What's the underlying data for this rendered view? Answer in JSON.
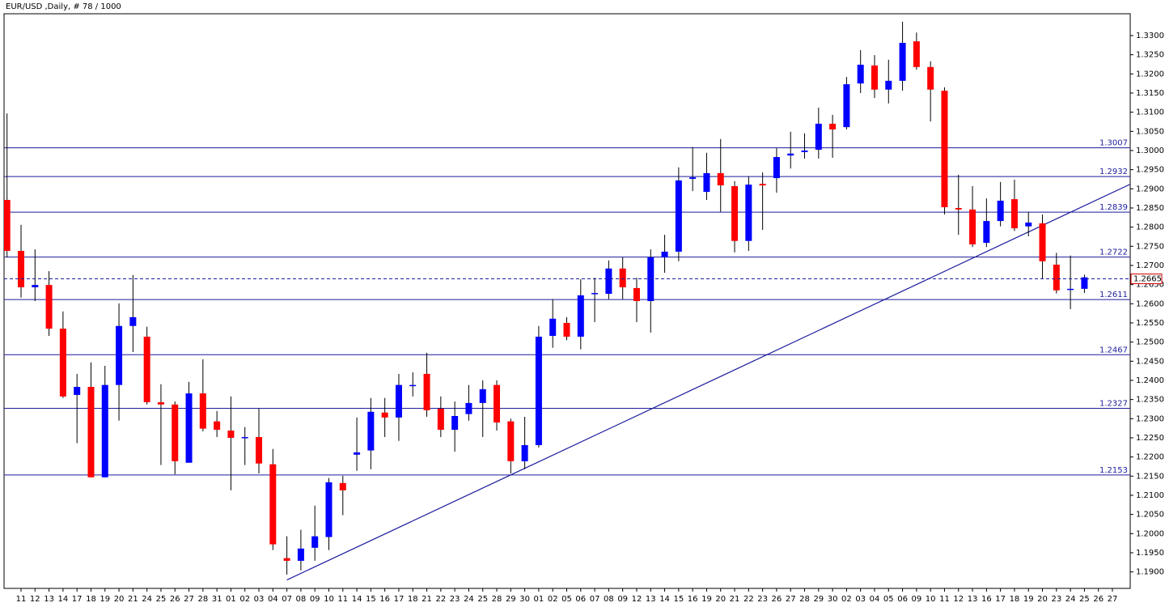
{
  "chart_data": {
    "type": "candlestick",
    "title": "EUR/USD ,Daily, # 78 / 1000",
    "categories": [
      null,
      "11",
      "12",
      "13",
      "14",
      "17",
      "18",
      "19",
      "20",
      "21",
      "24",
      "25",
      "26",
      "27",
      "28",
      "31",
      "01",
      "02",
      "03",
      "04",
      "07",
      "08",
      "09",
      "10",
      "11",
      "14",
      "15",
      "16",
      "17",
      "18",
      "21",
      "22",
      "23",
      "24",
      "25",
      "28",
      "29",
      "30",
      "01",
      "02",
      "05",
      "06",
      "07",
      "08",
      "09",
      "12",
      "13",
      "14",
      "15",
      "16",
      "19",
      "20",
      "21",
      "22",
      "23",
      "26",
      "27",
      "28",
      "29",
      "30",
      "02",
      "03",
      "04",
      "05",
      "06",
      "09",
      "10",
      "11",
      "12",
      "13",
      "16",
      "17",
      "18",
      "19",
      "20",
      "23",
      "24",
      "25",
      "26",
      "27"
    ],
    "open": [
      1.2871,
      1.2738,
      1.2643,
      1.2649,
      1.2535,
      1.2362,
      1.2383,
      1.2147,
      1.2388,
      1.2542,
      1.2514,
      1.2343,
      1.2337,
      1.2185,
      1.2366,
      1.2293,
      1.2269,
      1.225,
      1.2252,
      1.2181,
      1.1936,
      1.1929,
      1.1963,
      1.1991,
      1.2132,
      1.2206,
      1.2217,
      1.2316,
      1.2303,
      1.2386,
      1.2417,
      1.2326,
      1.2271,
      1.2312,
      1.2341,
      1.2388,
      1.2293,
      1.2189,
      1.2231,
      1.2516,
      1.255,
      1.2514,
      1.2626,
      1.2626,
      1.2692,
      1.2641,
      1.2607,
      1.2721,
      1.2736,
      1.2926,
      1.2892,
      1.2941,
      1.2907,
      1.2764,
      1.2913,
      1.2928,
      1.2987,
      1.2996,
      1.3002,
      1.307,
      1.3061,
      1.3175,
      1.3222,
      1.3159,
      1.3182,
      1.3285,
      1.3218,
      1.3156,
      1.285,
      1.2846,
      1.2759,
      1.2816,
      1.2873,
      1.2802,
      1.281,
      1.2702,
      1.2637,
      1.2639,
      null,
      null
    ],
    "high": [
      1.3097,
      1.2806,
      1.2742,
      1.2685,
      1.258,
      1.2417,
      1.2447,
      1.2438,
      1.2601,
      1.2675,
      1.254,
      1.239,
      1.2345,
      1.2396,
      1.2455,
      1.232,
      1.2358,
      1.2278,
      1.2326,
      1.2221,
      1.1993,
      1.201,
      1.2073,
      1.2145,
      1.2151,
      1.2303,
      1.2354,
      1.2354,
      1.2417,
      1.2421,
      1.2472,
      1.2358,
      1.2345,
      1.2388,
      1.24,
      1.24,
      1.23,
      1.2305,
      1.2542,
      1.2612,
      1.2565,
      1.2664,
      1.2668,
      1.2713,
      1.2721,
      1.2668,
      1.2742,
      1.278,
      1.2956,
      1.3009,
      1.2994,
      1.303,
      1.292,
      1.2932,
      1.2943,
      1.3006,
      1.3049,
      1.3045,
      1.3112,
      1.3093,
      1.3192,
      1.3262,
      1.3249,
      1.3237,
      1.3336,
      1.3308,
      1.3233,
      1.3165,
      1.2937,
      1.2907,
      1.2875,
      1.2918,
      1.2924,
      1.284,
      1.2833,
      1.2733,
      1.2726,
      1.2676,
      null,
      null
    ],
    "low": [
      1.2721,
      1.2616,
      1.2607,
      1.2516,
      1.2354,
      1.2236,
      1.2147,
      1.2147,
      1.2295,
      1.2474,
      1.2337,
      1.2179,
      1.2155,
      1.2185,
      1.2267,
      1.2252,
      1.2113,
      1.2179,
      1.2157,
      1.1957,
      1.1893,
      1.1904,
      1.1929,
      1.1957,
      1.2048,
      1.2164,
      1.2168,
      1.2252,
      1.2242,
      1.2358,
      1.2305,
      1.2252,
      1.2214,
      1.2295,
      1.2252,
      1.2269,
      1.2157,
      1.2168,
      1.2225,
      1.2485,
      1.2505,
      1.2481,
      1.2552,
      1.2612,
      1.2612,
      1.2552,
      1.2525,
      1.2681,
      1.2711,
      1.2894,
      1.2871,
      1.284,
      1.2734,
      1.2738,
      1.2793,
      1.289,
      1.2953,
      1.2979,
      1.2979,
      1.2981,
      1.3055,
      1.315,
      1.3137,
      1.3123,
      1.3156,
      1.3211,
      1.3076,
      1.2833,
      1.278,
      1.2748,
      1.2748,
      1.2802,
      1.279,
      1.2776,
      1.2664,
      1.2627,
      1.2586,
      1.2628,
      null,
      null
    ],
    "close": [
      1.2738,
      1.2643,
      1.2649,
      1.2535,
      1.2358,
      1.2383,
      1.2147,
      1.2388,
      1.2542,
      1.2565,
      1.2343,
      1.2337,
      1.2189,
      1.2366,
      1.2274,
      1.2271,
      1.225,
      1.2252,
      1.2183,
      1.1972,
      1.1929,
      1.1961,
      1.1993,
      1.2134,
      1.2113,
      1.2212,
      1.2318,
      1.2303,
      1.2388,
      1.2388,
      1.2322,
      1.2271,
      1.2307,
      1.2341,
      1.2377,
      1.229,
      1.2189,
      1.2231,
      1.2514,
      1.2561,
      1.2514,
      1.2622,
      1.2628,
      1.2692,
      1.2643,
      1.2607,
      1.2721,
      1.2736,
      1.2922,
      1.293,
      1.2941,
      1.2909,
      1.2764,
      1.2911,
      1.2909,
      1.2983,
      1.2992,
      1.3,
      1.307,
      1.3055,
      1.3173,
      1.3224,
      1.3159,
      1.3182,
      1.3281,
      1.3218,
      1.3159,
      1.2852,
      1.2846,
      1.2755,
      1.2816,
      1.2869,
      1.2797,
      1.2812,
      1.2711,
      1.2635,
      1.2639,
      1.2669,
      null,
      null
    ],
    "up_color": "#0000ff",
    "down_color": "#ff0000",
    "wick_color": "#000000",
    "ylim": [
      1.1857,
      1.3357
    ],
    "yticks": [
      {
        "value": 1.19,
        "label": "1.1900"
      },
      {
        "value": 1.195,
        "label": "1.1950"
      },
      {
        "value": 1.2,
        "label": "1.2000"
      },
      {
        "value": 1.205,
        "label": "1.2050"
      },
      {
        "value": 1.21,
        "label": "1.2100"
      },
      {
        "value": 1.215,
        "label": "1.2150"
      },
      {
        "value": 1.22,
        "label": "1.2200"
      },
      {
        "value": 1.225,
        "label": "1.2250"
      },
      {
        "value": 1.23,
        "label": "1.2300"
      },
      {
        "value": 1.235,
        "label": "1.2350"
      },
      {
        "value": 1.24,
        "label": "1.2400"
      },
      {
        "value": 1.245,
        "label": "1.2450"
      },
      {
        "value": 1.25,
        "label": "1.2500"
      },
      {
        "value": 1.255,
        "label": "1.2550"
      },
      {
        "value": 1.26,
        "label": "1.2600"
      },
      {
        "value": 1.265,
        "label": "1.2650"
      },
      {
        "value": 1.27,
        "label": "1.2700"
      },
      {
        "value": 1.275,
        "label": "1.2750"
      },
      {
        "value": 1.28,
        "label": "1.2800"
      },
      {
        "value": 1.285,
        "label": "1.2850"
      },
      {
        "value": 1.29,
        "label": "1.2900"
      },
      {
        "value": 1.295,
        "label": "1.2950"
      },
      {
        "value": 1.3,
        "label": "1.3000"
      },
      {
        "value": 1.305,
        "label": "1.3050"
      },
      {
        "value": 1.31,
        "label": "1.3100"
      },
      {
        "value": 1.315,
        "label": "1.3150"
      },
      {
        "value": 1.32,
        "label": "1.3200"
      },
      {
        "value": 1.325,
        "label": "1.3250"
      },
      {
        "value": 1.33,
        "label": "1.3300"
      }
    ],
    "levels": [
      {
        "value": 1.3007,
        "label": "1.3007"
      },
      {
        "value": 1.2932,
        "label": "1.2932"
      },
      {
        "value": 1.2839,
        "label": "1.2839"
      },
      {
        "value": 1.2722,
        "label": "1.2722"
      },
      {
        "value": 1.2611,
        "label": "1.2611"
      },
      {
        "value": 1.2467,
        "label": "1.2467"
      },
      {
        "value": 1.2327,
        "label": "1.2327"
      },
      {
        "value": 1.2153,
        "label": "1.2153"
      }
    ],
    "level_color": "#1c1c9c",
    "current_price": {
      "value": 1.2665,
      "label": "1.2665"
    },
    "current_price_color": "#d00000",
    "trendline": {
      "x": [
        20,
        80.27
      ],
      "y": [
        1.1879,
        1.2912
      ]
    }
  }
}
